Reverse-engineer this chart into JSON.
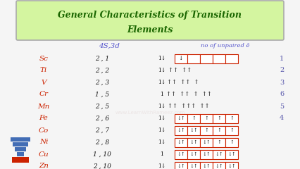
{
  "title_line1": "General Characteristics of Transition",
  "title_line2": "Elements",
  "title_color": "#1a6600",
  "title_bg": "#d4f5a0",
  "title_border": "#aaaaaa",
  "bg_color": "#f5f5f5",
  "header_4s3d": "4S,3d",
  "header_unpaired": "no of unpaired ē",
  "header_color": "#5555cc",
  "elements": [
    "Sc",
    "Ti",
    "V",
    "Cr",
    "Mn",
    "Fe",
    "Co",
    "Ni",
    "Cu",
    "Zn"
  ],
  "configs": [
    "2 , 1",
    "2 , 2",
    "2 , 3",
    "1 , 5",
    "2 , 5",
    "2 , 6",
    "2 , 7",
    "2 , 8",
    "1 , 10",
    "2 , 10"
  ],
  "element_color": "#cc2200",
  "config_color": "#111111",
  "unpaired_counts": [
    "1",
    "2",
    "3",
    "6",
    "5",
    "4",
    "",
    "",
    "",
    ""
  ],
  "count_color": "#5555aa",
  "box_color": "#cc2200"
}
